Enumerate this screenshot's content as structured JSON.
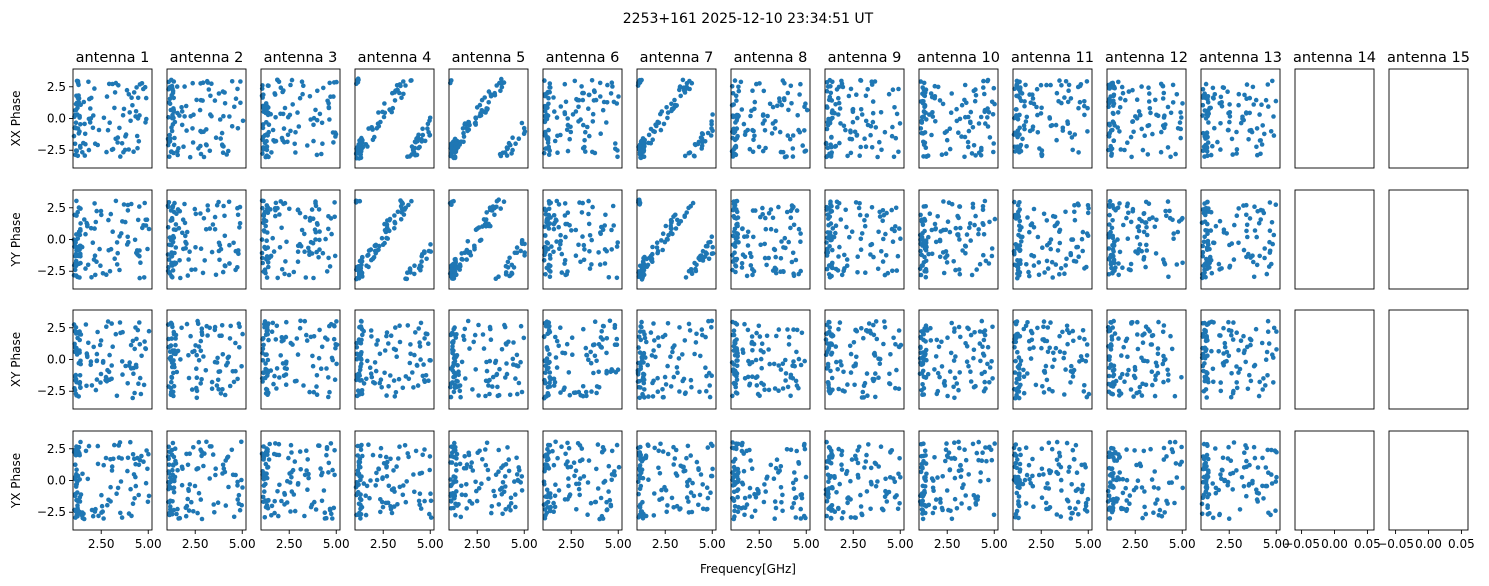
{
  "figure": {
    "suptitle": "2253+161 2025-12-10 23:34:51 UT",
    "xlabel": "Frequency[GHz]"
  },
  "chart_data": {
    "type": "scatter",
    "title": "2253+161 2025-12-10 23:34:51 UT",
    "xlabel": "Frequency[GHz]",
    "antennas": [
      "antenna 1",
      "antenna 2",
      "antenna 3",
      "antenna 4",
      "antenna 5",
      "antenna 6",
      "antenna 7",
      "antenna 8",
      "antenna 9",
      "antenna 10",
      "antenna 11",
      "antenna 12",
      "antenna 13",
      "antenna 14",
      "antenna 15"
    ],
    "rows": [
      "XX Phase",
      "YY Phase",
      "XY Phase",
      "YX Phase"
    ],
    "xlim": [
      1.0,
      5.2
    ],
    "ylim": [
      -3.9,
      3.9
    ],
    "xticks": [
      2.5,
      5.0
    ],
    "xticklabels": [
      "2.50",
      "5.00"
    ],
    "yticks": [
      2.5,
      0.0,
      -2.5
    ],
    "yticklabels": [
      "2.5",
      "0.0",
      "−2.5"
    ],
    "empty_xlim": [
      -0.06,
      0.06
    ],
    "empty_xticks": [
      -0.05,
      0.0,
      0.05
    ],
    "empty_xticklabels": [
      "−0.05",
      "0.00",
      "0.05"
    ],
    "antennas_with_data": 13,
    "points_per_panel": 110,
    "marker_color": "#1f77b4",
    "grid": false
  }
}
